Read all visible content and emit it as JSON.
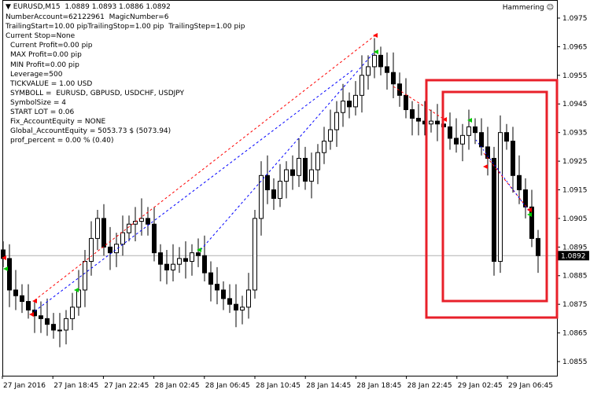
{
  "header": {
    "symbol": "▼ EURUSD,M15  1.0889 1.0893 1.0886 1.0892",
    "indicator_name": "Hammering",
    "indicator_icon": "smiley-icon"
  },
  "info_lines": [
    "NumberAccount=62122961  MagicNumber=6",
    "TrailingStart=10.00 pipTrailingStop=1.00 pip  TrailingStep=1.00 pip",
    "Current Stop=None",
    "Current Profit=0.00 pip",
    "MAX Profit=0.00 pip",
    "MIN Profit=0.00 pip",
    "Leverage=500",
    "TICKVALUE = 1.00 USD",
    "SYMBOLL =  EURUSD, GBPUSD, USDCHF, USDJPY",
    "SymbolSize = 4",
    "START LOT = 0.06",
    "Fix_AccountEquity = NONE",
    "Global_AccountEquity = 5053.73 $ (5073.94)",
    "prof_percent = 0.00 % (0.40)"
  ],
  "chart_data": {
    "type": "candlestick",
    "symbol": "EURUSD",
    "timeframe": "M15",
    "ylim": [
      1.085,
      1.0985
    ],
    "y_ticks": [
      "1.0975",
      "1.0965",
      "1.0955",
      "1.0945",
      "1.0935",
      "1.0925",
      "1.0915",
      "1.0905",
      "1.0895",
      "1.0885",
      "1.0875",
      "1.0865",
      "1.0855"
    ],
    "x_ticks": [
      "27 Jan 2016",
      "27 Jan 18:45",
      "27 Jan 22:45",
      "28 Jan 02:45",
      "28 Jan 06:45",
      "28 Jan 10:45",
      "28 Jan 14:45",
      "28 Jan 18:45",
      "28 Jan 22:45",
      "29 Jan 02:45",
      "29 Jan 06:45"
    ],
    "current_price": "1.0892",
    "closes": [
      1.0891,
      1.088,
      1.0878,
      1.0876,
      1.0873,
      1.0871,
      1.087,
      1.0868,
      1.0866,
      1.0866,
      1.087,
      1.0874,
      1.088,
      1.089,
      1.0898,
      1.0905,
      1.0895,
      1.0893,
      1.0896,
      1.09,
      1.0903,
      1.0904,
      1.0905,
      1.0903,
      1.0893,
      1.0889,
      1.0887,
      1.0889,
      1.0891,
      1.089,
      1.0893,
      1.0892,
      1.0886,
      1.0882,
      1.088,
      1.0877,
      1.0875,
      1.0873,
      1.0874,
      1.088,
      1.0905,
      1.092,
      1.0915,
      1.0912,
      1.0918,
      1.0922,
      1.092,
      1.0926,
      1.0918,
      1.0922,
      1.0928,
      1.0932,
      1.0936,
      1.0942,
      1.0946,
      1.0944,
      1.0948,
      1.0955,
      1.0958,
      1.0962,
      1.0958,
      1.0956,
      1.0952,
      1.0948,
      1.0943,
      1.094,
      1.0939,
      1.0938,
      1.0939,
      1.0938,
      1.0937,
      1.0933,
      1.0931,
      1.0934,
      1.0937,
      1.0935,
      1.093,
      1.0926,
      1.089,
      1.0935,
      1.0932,
      1.092,
      1.0915,
      1.0909,
      1.0898,
      1.0892
    ],
    "grid": false,
    "colors": {
      "candle": "#000000",
      "highlight_box": "#e8202a",
      "buy_line": "#ff0000",
      "sell_line": "#0000ff",
      "buy_marker": "#00cc00",
      "sell_marker": "#ff0000"
    }
  }
}
